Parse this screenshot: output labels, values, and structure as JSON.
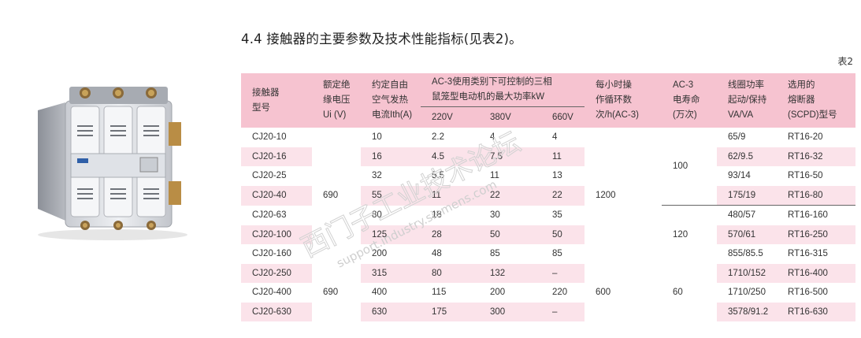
{
  "heading": "4.4 接触器的主要参数及技术性能指标(见表2)。",
  "table_tag": "表2",
  "columns": {
    "model": [
      "接触器",
      "型号"
    ],
    "ui": [
      "额定绝",
      "缘电压",
      "Ui (V)"
    ],
    "ith": [
      "约定自由",
      "空气发热",
      "电流Ith(A)"
    ],
    "power": [
      "AC-3使用类别下可控制的三相",
      "鼠笼型电动机的最大功率kW"
    ],
    "power_sub": [
      "220V",
      "380V",
      "660V"
    ],
    "ops": [
      "每小时操",
      "作循环数",
      "次/h(AC-3)"
    ],
    "life": [
      "AC-3",
      "电寿命",
      "(万次)"
    ],
    "coil": [
      "线圈功率",
      "起动/保持",
      "VA/VA"
    ],
    "fuse": [
      "选用的",
      "熔断器",
      "(SCPD)型号"
    ]
  },
  "rows": [
    {
      "model": "CJ20-10",
      "ith": "10",
      "p220": "2.2",
      "p380": "4",
      "p660": "4",
      "coil": "65/9",
      "fuse": "RT16-20"
    },
    {
      "model": "CJ20-16",
      "ith": "16",
      "p220": "4.5",
      "p380": "7.5",
      "p660": "11",
      "coil": "62/9.5",
      "fuse": "RT16-32"
    },
    {
      "model": "CJ20-25",
      "ith": "32",
      "p220": "5.5",
      "p380": "11",
      "p660": "13",
      "coil": "93/14",
      "fuse": "RT16-50"
    },
    {
      "model": "CJ20-40",
      "ith": "55",
      "p220": "11",
      "p380": "22",
      "p660": "22",
      "coil": "175/19",
      "fuse": "RT16-80"
    },
    {
      "model": "CJ20-63",
      "ith": "80",
      "p220": "18",
      "p380": "30",
      "p660": "35",
      "coil": "480/57",
      "fuse": "RT16-160"
    },
    {
      "model": "CJ20-100",
      "ith": "125",
      "p220": "28",
      "p380": "50",
      "p660": "50",
      "coil": "570/61",
      "fuse": "RT16-250"
    },
    {
      "model": "CJ20-160",
      "ith": "200",
      "p220": "48",
      "p380": "85",
      "p660": "85",
      "coil": "855/85.5",
      "fuse": "RT16-315"
    },
    {
      "model": "CJ20-250",
      "ith": "315",
      "p220": "80",
      "p380": "132",
      "p660": "–",
      "coil": "1710/152",
      "fuse": "RT16-400"
    },
    {
      "model": "CJ20-400",
      "ith": "400",
      "p220": "115",
      "p380": "200",
      "p660": "220",
      "coil": "1710/250",
      "fuse": "RT16-500"
    },
    {
      "model": "CJ20-630",
      "ith": "630",
      "p220": "175",
      "p380": "300",
      "p660": "–",
      "coil": "3578/91.2",
      "fuse": "RT16-630"
    }
  ],
  "merged": {
    "ui_a": "690",
    "ui_b": "690",
    "ops_a": "1200",
    "ops_b": "600",
    "life_a": "100",
    "life_b": "120",
    "life_c": "60"
  },
  "watermark": {
    "cn": "西门子工业技术论坛",
    "en": "support.industry.siemens.com"
  }
}
